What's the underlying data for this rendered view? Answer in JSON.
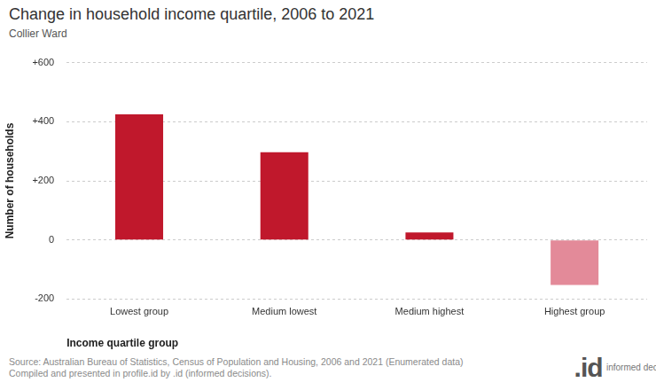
{
  "chart_data": {
    "type": "bar",
    "title": "Change in household income quartile, 2006 to 2021",
    "subtitle": "Collier Ward",
    "x_label": "Income quartile group",
    "y_label": "Number of households",
    "categories": [
      "Lowest group",
      "Medium lowest",
      "Medium highest",
      "Highest group"
    ],
    "values": [
      425,
      297,
      25,
      -152
    ],
    "colors": [
      "#c0182c",
      "#c0182c",
      "#c0182c",
      "#e38a99"
    ],
    "ylim": [
      -200,
      600
    ],
    "yticks": [
      -200,
      0,
      {
        "value": 200,
        "label": "+200"
      },
      {
        "value": 400,
        "label": "+400"
      },
      {
        "value": 600,
        "label": "+600"
      }
    ],
    "grid": true,
    "source": [
      "Source: Australian Bureau of Statistics, Census of Population and Housing, 2006 and 2021 (Enumerated data)",
      "Compiled and presented in profile.id by .id (informed decisions)."
    ],
    "logo": {
      "mark": ".id",
      "text": "informed decisions"
    }
  }
}
